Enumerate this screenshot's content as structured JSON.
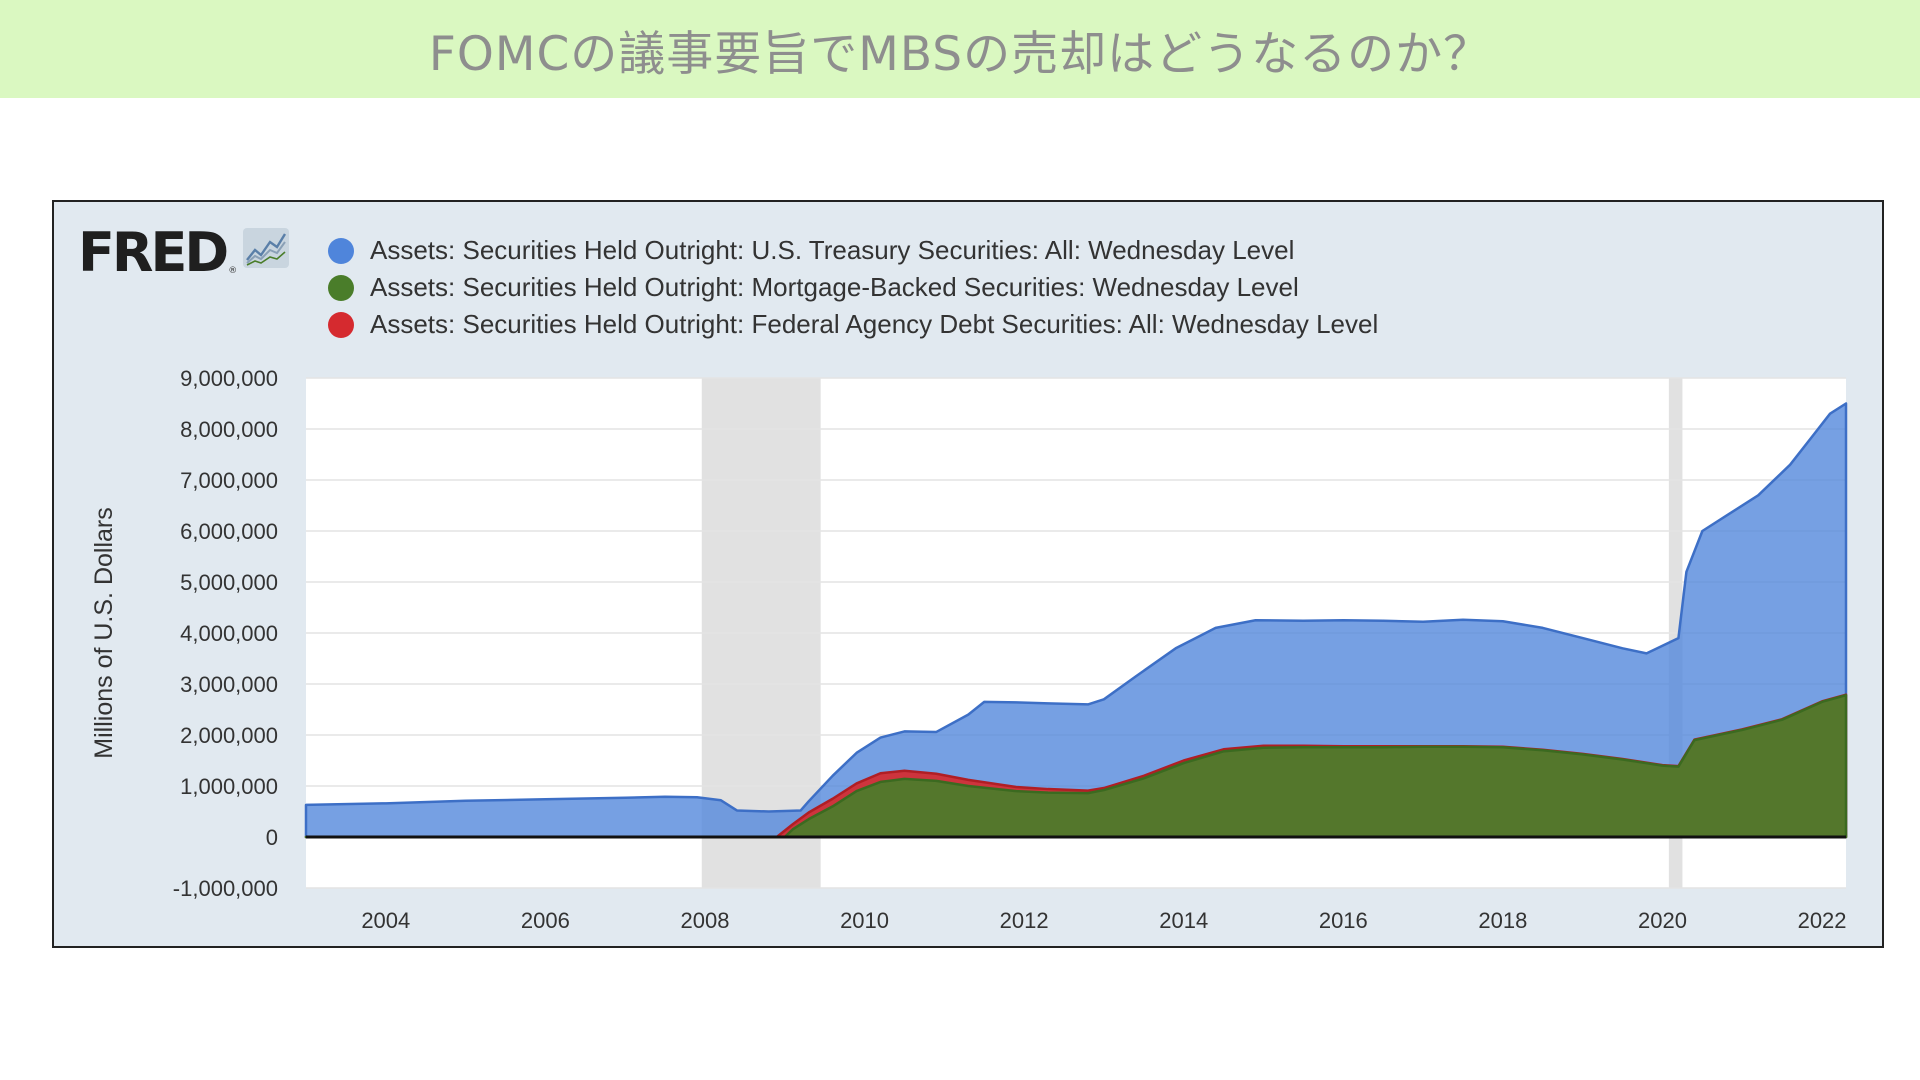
{
  "page": {
    "title": "FOMCの議事要旨でMBSの売却はどうなるのか？"
  },
  "branding": {
    "logo_text": "FRED",
    "logo_registered": "®",
    "logo_icon": "line-graph-icon"
  },
  "colors": {
    "banner_bg": "#daf8c1",
    "treasury": "#4f85db",
    "mbs": "#4a7d2a",
    "agency": "#d52a2f",
    "recession": "#e1e1e1",
    "plot_bg": "#ffffff",
    "frame_bg": "#e1e9f0"
  },
  "chart_data": {
    "type": "area",
    "ylabel": "Millions of U.S. Dollars",
    "xlabel": "",
    "ylim": [
      -1000000,
      9000000
    ],
    "xlim": [
      2003.0,
      2022.3
    ],
    "y_ticks": [
      -1000000,
      0,
      1000000,
      2000000,
      3000000,
      4000000,
      5000000,
      6000000,
      7000000,
      8000000,
      9000000
    ],
    "y_tick_labels": [
      "-1,000,000",
      "0",
      "1,000,000",
      "2,000,000",
      "3,000,000",
      "4,000,000",
      "5,000,000",
      "6,000,000",
      "7,000,000",
      "8,000,000",
      "9,000,000"
    ],
    "x_ticks": [
      2004,
      2006,
      2008,
      2010,
      2012,
      2014,
      2016,
      2018,
      2020,
      2022
    ],
    "x_tick_labels": [
      "2004",
      "2006",
      "2008",
      "2010",
      "2012",
      "2014",
      "2016",
      "2018",
      "2020",
      "2022"
    ],
    "grid": true,
    "legend_position": "top",
    "stacked": true,
    "recessions": [
      [
        2007.96,
        2009.45
      ],
      [
        2020.08,
        2020.25
      ]
    ],
    "series": [
      {
        "name": "Assets: Securities Held Outright: U.S. Treasury Securities: All: Wednesday Level",
        "display": "stacked-total",
        "points": [
          [
            2003.0,
            630000
          ],
          [
            2004.0,
            660000
          ],
          [
            2005.0,
            710000
          ],
          [
            2006.0,
            740000
          ],
          [
            2007.0,
            770000
          ],
          [
            2007.5,
            790000
          ],
          [
            2007.9,
            780000
          ],
          [
            2008.2,
            720000
          ],
          [
            2008.4,
            520000
          ],
          [
            2008.8,
            500000
          ],
          [
            2009.2,
            520000
          ],
          [
            2009.3,
            700000
          ],
          [
            2009.6,
            1200000
          ],
          [
            2009.9,
            1650000
          ],
          [
            2010.2,
            1950000
          ],
          [
            2010.5,
            2070000
          ],
          [
            2010.9,
            2060000
          ],
          [
            2011.3,
            2400000
          ],
          [
            2011.5,
            2650000
          ],
          [
            2011.9,
            2640000
          ],
          [
            2012.3,
            2620000
          ],
          [
            2012.8,
            2600000
          ],
          [
            2013.0,
            2700000
          ],
          [
            2013.4,
            3150000
          ],
          [
            2013.9,
            3700000
          ],
          [
            2014.4,
            4100000
          ],
          [
            2014.9,
            4250000
          ],
          [
            2015.5,
            4240000
          ],
          [
            2016.0,
            4250000
          ],
          [
            2016.5,
            4240000
          ],
          [
            2017.0,
            4220000
          ],
          [
            2017.5,
            4260000
          ],
          [
            2018.0,
            4230000
          ],
          [
            2018.5,
            4100000
          ],
          [
            2019.0,
            3900000
          ],
          [
            2019.5,
            3700000
          ],
          [
            2019.8,
            3600000
          ],
          [
            2020.0,
            3750000
          ],
          [
            2020.2,
            3900000
          ],
          [
            2020.3,
            5200000
          ],
          [
            2020.5,
            6000000
          ],
          [
            2020.8,
            6300000
          ],
          [
            2021.2,
            6700000
          ],
          [
            2021.6,
            7300000
          ],
          [
            2021.9,
            7900000
          ],
          [
            2022.1,
            8300000
          ],
          [
            2022.3,
            8500000
          ]
        ]
      },
      {
        "name": "Assets: Securities Held Outright: Mortgage-Backed Securities: Wednesday Level",
        "display": "stacked-total",
        "points": [
          [
            2003.0,
            0
          ],
          [
            2009.0,
            0
          ],
          [
            2009.1,
            150000
          ],
          [
            2009.3,
            350000
          ],
          [
            2009.6,
            600000
          ],
          [
            2009.9,
            900000
          ],
          [
            2010.2,
            1080000
          ],
          [
            2010.5,
            1140000
          ],
          [
            2010.9,
            1100000
          ],
          [
            2011.3,
            1000000
          ],
          [
            2011.9,
            900000
          ],
          [
            2012.3,
            870000
          ],
          [
            2012.8,
            860000
          ],
          [
            2013.0,
            920000
          ],
          [
            2013.5,
            1150000
          ],
          [
            2014.0,
            1450000
          ],
          [
            2014.5,
            1680000
          ],
          [
            2015.0,
            1750000
          ],
          [
            2015.5,
            1760000
          ],
          [
            2016.0,
            1760000
          ],
          [
            2016.5,
            1760000
          ],
          [
            2017.0,
            1770000
          ],
          [
            2017.5,
            1770000
          ],
          [
            2018.0,
            1760000
          ],
          [
            2018.5,
            1700000
          ],
          [
            2019.0,
            1620000
          ],
          [
            2019.5,
            1520000
          ],
          [
            2020.0,
            1400000
          ],
          [
            2020.2,
            1380000
          ],
          [
            2020.4,
            1900000
          ],
          [
            2020.7,
            2000000
          ],
          [
            2021.0,
            2100000
          ],
          [
            2021.5,
            2300000
          ],
          [
            2022.0,
            2650000
          ],
          [
            2022.3,
            2780000
          ]
        ]
      },
      {
        "name": "Assets: Securities Held Outright: Federal Agency Debt Securities: All: Wednesday Level",
        "display": "stacked-total",
        "points": [
          [
            2003.0,
            0
          ],
          [
            2008.9,
            0
          ],
          [
            2009.1,
            250000
          ],
          [
            2009.3,
            480000
          ],
          [
            2009.6,
            750000
          ],
          [
            2009.9,
            1050000
          ],
          [
            2010.2,
            1250000
          ],
          [
            2010.5,
            1300000
          ],
          [
            2010.9,
            1240000
          ],
          [
            2011.3,
            1120000
          ],
          [
            2011.9,
            980000
          ],
          [
            2012.3,
            940000
          ],
          [
            2012.8,
            910000
          ],
          [
            2013.0,
            960000
          ],
          [
            2013.5,
            1200000
          ],
          [
            2014.0,
            1500000
          ],
          [
            2014.5,
            1720000
          ],
          [
            2015.0,
            1790000
          ],
          [
            2015.5,
            1790000
          ],
          [
            2016.0,
            1780000
          ],
          [
            2016.5,
            1780000
          ],
          [
            2017.0,
            1780000
          ],
          [
            2017.5,
            1780000
          ],
          [
            2018.0,
            1770000
          ],
          [
            2018.5,
            1710000
          ],
          [
            2019.0,
            1630000
          ],
          [
            2019.5,
            1530000
          ],
          [
            2020.0,
            1410000
          ],
          [
            2020.2,
            1390000
          ],
          [
            2020.4,
            1910000
          ],
          [
            2020.7,
            2010000
          ],
          [
            2021.0,
            2110000
          ],
          [
            2021.5,
            2310000
          ],
          [
            2022.0,
            2660000
          ],
          [
            2022.3,
            2790000
          ]
        ]
      }
    ]
  }
}
